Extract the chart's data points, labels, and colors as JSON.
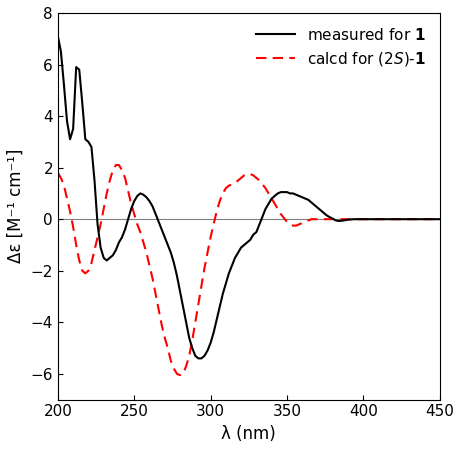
{
  "xlim": [
    200,
    450
  ],
  "ylim": [
    -7,
    8
  ],
  "xlabel": "λ (nm)",
  "ylabel": "Δε [M⁻¹ cm⁻¹]",
  "yticks": [
    -6,
    -4,
    -2,
    0,
    2,
    4,
    6,
    8
  ],
  "xticks": [
    200,
    250,
    300,
    350,
    400,
    450
  ],
  "legend_measured": "measured for ",
  "legend_calcd": "calcd for (2",
  "zero_line_color": "#808080",
  "measured_color": "#000000",
  "calcd_color": "#ff0000",
  "measured_x": [
    200,
    202,
    204,
    206,
    208,
    210,
    212,
    214,
    216,
    218,
    220,
    222,
    224,
    226,
    228,
    230,
    232,
    234,
    236,
    238,
    240,
    242,
    244,
    246,
    248,
    250,
    252,
    254,
    256,
    258,
    260,
    262,
    264,
    266,
    268,
    270,
    272,
    274,
    276,
    278,
    280,
    282,
    284,
    286,
    288,
    290,
    292,
    294,
    296,
    298,
    300,
    302,
    304,
    306,
    308,
    310,
    312,
    314,
    316,
    318,
    320,
    322,
    324,
    326,
    328,
    330,
    332,
    334,
    336,
    338,
    340,
    342,
    344,
    346,
    348,
    350,
    352,
    354,
    356,
    358,
    360,
    362,
    364,
    366,
    368,
    370,
    372,
    374,
    376,
    378,
    380,
    382,
    384,
    386,
    388,
    390,
    392,
    394,
    396,
    398,
    400,
    410,
    420,
    430,
    440,
    450
  ],
  "measured_y": [
    7.1,
    6.5,
    5.2,
    3.8,
    3.1,
    3.5,
    5.9,
    5.8,
    4.5,
    3.1,
    3.0,
    2.8,
    1.5,
    -0.2,
    -1.1,
    -1.5,
    -1.6,
    -1.5,
    -1.4,
    -1.2,
    -0.9,
    -0.7,
    -0.4,
    0.0,
    0.4,
    0.7,
    0.9,
    1.0,
    0.95,
    0.85,
    0.7,
    0.5,
    0.2,
    -0.1,
    -0.4,
    -0.7,
    -1.0,
    -1.3,
    -1.7,
    -2.2,
    -2.8,
    -3.4,
    -4.0,
    -4.6,
    -5.0,
    -5.3,
    -5.4,
    -5.4,
    -5.3,
    -5.1,
    -4.8,
    -4.4,
    -3.9,
    -3.4,
    -2.9,
    -2.5,
    -2.1,
    -1.8,
    -1.5,
    -1.3,
    -1.1,
    -1.0,
    -0.9,
    -0.8,
    -0.6,
    -0.5,
    -0.2,
    0.1,
    0.4,
    0.6,
    0.8,
    0.9,
    1.0,
    1.05,
    1.05,
    1.05,
    1.0,
    1.0,
    0.95,
    0.9,
    0.85,
    0.8,
    0.75,
    0.65,
    0.55,
    0.45,
    0.35,
    0.25,
    0.15,
    0.08,
    0.02,
    -0.05,
    -0.07,
    -0.06,
    -0.04,
    -0.02,
    -0.01,
    0.0,
    0.0,
    0.0,
    0.0,
    0.0,
    0.0,
    0.0,
    0.0,
    0.0
  ],
  "calcd_x": [
    200,
    202,
    204,
    206,
    208,
    210,
    212,
    214,
    216,
    218,
    220,
    222,
    224,
    226,
    228,
    230,
    232,
    234,
    236,
    238,
    240,
    242,
    244,
    246,
    248,
    250,
    252,
    254,
    256,
    258,
    260,
    262,
    264,
    266,
    268,
    270,
    272,
    274,
    276,
    278,
    280,
    282,
    284,
    286,
    288,
    290,
    292,
    294,
    296,
    298,
    300,
    302,
    304,
    306,
    308,
    310,
    312,
    314,
    316,
    318,
    320,
    322,
    324,
    326,
    328,
    330,
    332,
    334,
    336,
    338,
    340,
    342,
    344,
    346,
    348,
    350,
    352,
    354,
    356,
    358,
    360,
    362,
    364,
    366,
    368,
    370,
    372,
    374,
    376,
    378,
    380,
    382,
    384,
    386,
    388,
    390,
    392,
    394,
    396,
    398,
    400,
    410,
    420,
    430,
    440,
    450
  ],
  "calcd_y": [
    1.8,
    1.6,
    1.3,
    0.8,
    0.3,
    -0.3,
    -1.0,
    -1.6,
    -2.0,
    -2.1,
    -2.0,
    -1.7,
    -1.2,
    -0.7,
    -0.2,
    0.4,
    1.0,
    1.5,
    1.9,
    2.1,
    2.1,
    1.9,
    1.6,
    1.1,
    0.6,
    0.2,
    -0.2,
    -0.5,
    -0.9,
    -1.3,
    -1.8,
    -2.3,
    -2.9,
    -3.5,
    -4.1,
    -4.6,
    -5.0,
    -5.5,
    -5.8,
    -6.0,
    -6.05,
    -6.0,
    -5.7,
    -5.3,
    -4.7,
    -4.0,
    -3.3,
    -2.6,
    -1.9,
    -1.3,
    -0.7,
    -0.2,
    0.3,
    0.7,
    1.0,
    1.2,
    1.3,
    1.35,
    1.4,
    1.5,
    1.6,
    1.7,
    1.75,
    1.75,
    1.7,
    1.6,
    1.5,
    1.35,
    1.2,
    1.0,
    0.8,
    0.6,
    0.4,
    0.2,
    0.05,
    -0.1,
    -0.2,
    -0.25,
    -0.25,
    -0.2,
    -0.15,
    -0.1,
    -0.05,
    0.0,
    0.0,
    0.0,
    0.0,
    0.0,
    0.0,
    0.0,
    0.0,
    0.0,
    0.0,
    0.0,
    0.0,
    0.0,
    0.0,
    0.0,
    0.0,
    0.0,
    0.0,
    0.0,
    0.0,
    0.0,
    0.0,
    0.0
  ]
}
